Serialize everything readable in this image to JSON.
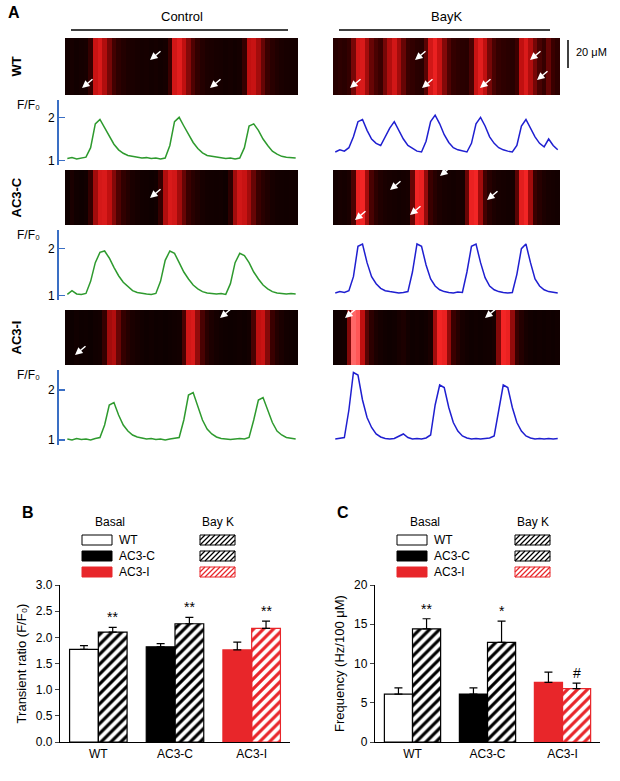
{
  "chart_data": [
    {
      "type": "line",
      "panel": "A",
      "column_titles": [
        "Control",
        "BayK"
      ],
      "y_label": "F/F₀",
      "ylim": [
        0.9,
        2.4
      ],
      "yticks": [
        1,
        2
      ],
      "scale_bar": "20 μM",
      "tick_labels": "y",
      "series": [
        {
          "name": "WT",
          "column": "Control",
          "color": "#2e9a2e",
          "values": [
            1.05,
            1.07,
            1.04,
            1.06,
            1.08,
            1.3,
            1.85,
            1.95,
            1.75,
            1.55,
            1.38,
            1.25,
            1.17,
            1.12,
            1.1,
            1.08,
            1.06,
            1.07,
            1.05,
            1.06,
            1.04,
            1.06,
            1.35,
            1.9,
            2.0,
            1.8,
            1.6,
            1.42,
            1.28,
            1.18,
            1.12,
            1.1,
            1.08,
            1.07,
            1.05,
            1.06,
            1.04,
            1.06,
            1.3,
            1.8,
            1.85,
            1.7,
            1.5,
            1.35,
            1.22,
            1.15,
            1.1,
            1.08,
            1.07,
            1.06
          ]
        },
        {
          "name": "WT",
          "column": "BayK",
          "color": "#1f1fd0",
          "values": [
            1.2,
            1.25,
            1.22,
            1.3,
            1.55,
            1.9,
            1.95,
            1.7,
            1.5,
            1.4,
            1.35,
            1.55,
            1.75,
            1.9,
            1.7,
            1.5,
            1.35,
            1.28,
            1.22,
            1.2,
            1.45,
            1.9,
            2.05,
            1.85,
            1.6,
            1.42,
            1.3,
            1.25,
            1.22,
            1.2,
            1.4,
            1.85,
            2.0,
            1.8,
            1.55,
            1.4,
            1.3,
            1.25,
            1.22,
            1.2,
            1.35,
            1.8,
            1.95,
            1.75,
            1.55,
            1.4,
            1.32,
            1.5,
            1.35,
            1.25
          ]
        },
        {
          "name": "AC3-C",
          "column": "Control",
          "color": "#2e9a2e",
          "values": [
            1.02,
            1.1,
            1.03,
            1.02,
            1.04,
            1.3,
            1.7,
            1.92,
            1.95,
            1.8,
            1.6,
            1.42,
            1.28,
            1.18,
            1.1,
            1.06,
            1.04,
            1.03,
            1.02,
            1.04,
            1.3,
            1.75,
            1.95,
            1.9,
            1.7,
            1.5,
            1.35,
            1.22,
            1.14,
            1.08,
            1.05,
            1.04,
            1.03,
            1.04,
            1.02,
            1.25,
            1.7,
            1.9,
            1.85,
            1.7,
            1.5,
            1.35,
            1.22,
            1.14,
            1.08,
            1.05,
            1.04,
            1.03,
            1.04,
            1.03
          ]
        },
        {
          "name": "AC3-C",
          "column": "BayK",
          "color": "#1f1fd0",
          "values": [
            1.05,
            1.08,
            1.06,
            1.1,
            1.4,
            2.05,
            2.1,
            1.7,
            1.4,
            1.25,
            1.15,
            1.1,
            1.08,
            1.06,
            1.05,
            1.06,
            1.08,
            1.5,
            2.1,
            2.05,
            1.65,
            1.35,
            1.2,
            1.12,
            1.08,
            1.06,
            1.05,
            1.07,
            1.06,
            1.5,
            2.05,
            2.1,
            1.7,
            1.38,
            1.2,
            1.12,
            1.08,
            1.06,
            1.05,
            1.06,
            1.45,
            2.0,
            2.1,
            1.7,
            1.35,
            1.2,
            1.12,
            1.08,
            1.06,
            1.05
          ]
        },
        {
          "name": "AC3-I",
          "column": "Control",
          "color": "#2e9a2e",
          "values": [
            1.02,
            1.0,
            1.03,
            1.01,
            1.02,
            1.0,
            1.03,
            1.05,
            1.3,
            1.7,
            1.75,
            1.5,
            1.3,
            1.18,
            1.1,
            1.06,
            1.04,
            1.02,
            1.03,
            1.01,
            1.02,
            1.0,
            1.02,
            1.03,
            1.05,
            1.4,
            1.9,
            1.95,
            1.65,
            1.4,
            1.22,
            1.12,
            1.06,
            1.03,
            1.02,
            1.01,
            1.02,
            1.03,
            1.02,
            1.05,
            1.4,
            1.8,
            1.85,
            1.6,
            1.35,
            1.18,
            1.1,
            1.05,
            1.03,
            1.02
          ]
        },
        {
          "name": "AC3-I",
          "column": "BayK",
          "color": "#1f1fd0",
          "values": [
            1.02,
            1.03,
            1.05,
            1.6,
            2.35,
            2.3,
            1.8,
            1.45,
            1.25,
            1.12,
            1.06,
            1.03,
            1.02,
            1.03,
            1.08,
            1.12,
            1.05,
            1.02,
            1.03,
            1.02,
            1.04,
            1.1,
            1.7,
            2.1,
            2.05,
            1.65,
            1.35,
            1.18,
            1.08,
            1.04,
            1.02,
            1.03,
            1.02,
            1.03,
            1.04,
            1.08,
            1.6,
            2.1,
            2.05,
            1.65,
            1.35,
            1.18,
            1.08,
            1.04,
            1.02,
            1.03,
            1.02,
            1.03,
            1.02,
            1.03
          ]
        }
      ]
    },
    {
      "type": "bar",
      "panel": "B",
      "y_label": "Transient ratio (F/F₀)",
      "categories": [
        "WT",
        "AC3-C",
        "AC3-I"
      ],
      "ylim": [
        0,
        3
      ],
      "yticks": [
        {
          "value": 0,
          "label": "0.0"
        },
        0.5,
        {
          "value": 1,
          "label": "1.0"
        },
        1.5,
        {
          "value": 2,
          "label": "2.0"
        },
        2.5,
        {
          "value": 3,
          "label": "3.0"
        }
      ],
      "legend": "top-left",
      "grid": false,
      "series": [
        {
          "name": "Basal",
          "marker": "solid",
          "colors": [
            "#ffffff",
            "#000000",
            "#e8262a"
          ],
          "values": [
            1.77,
            1.82,
            1.76
          ],
          "errors": [
            0.07,
            0.06,
            0.15
          ]
        },
        {
          "name": "Bay K",
          "marker": "hatched",
          "colors": [
            "#000000",
            "#000000",
            "#e8262a"
          ],
          "values": [
            2.1,
            2.26,
            2.17
          ],
          "errors": [
            0.09,
            0.12,
            0.14
          ]
        }
      ],
      "annotations": [
        {
          "category": "WT",
          "series": "Bay K",
          "text": "**"
        },
        {
          "category": "AC3-C",
          "series": "Bay K",
          "text": "**"
        },
        {
          "category": "AC3-I",
          "series": "Bay K",
          "text": "**"
        }
      ]
    },
    {
      "type": "bar",
      "panel": "C",
      "y_label": "Frequency (Hz/100 μM)",
      "categories": [
        "WT",
        "AC3-C",
        "AC3-I"
      ],
      "ylim": [
        0,
        20
      ],
      "yticks": [
        0,
        5,
        10,
        15,
        20
      ],
      "legend": "top-left",
      "grid": false,
      "series": [
        {
          "name": "Basal",
          "marker": "solid",
          "colors": [
            "#ffffff",
            "#000000",
            "#e8262a"
          ],
          "values": [
            6.1,
            6.1,
            7.6
          ],
          "errors": [
            0.8,
            0.8,
            1.3
          ]
        },
        {
          "name": "Bay K",
          "marker": "hatched",
          "colors": [
            "#000000",
            "#000000",
            "#e8262a"
          ],
          "values": [
            14.4,
            12.7,
            6.8
          ],
          "errors": [
            1.3,
            2.7,
            0.7
          ]
        }
      ],
      "annotations": [
        {
          "category": "WT",
          "series": "Bay K",
          "text": "**"
        },
        {
          "category": "AC3-C",
          "series": "Bay K",
          "text": "*"
        },
        {
          "category": "AC3-I",
          "series": "Bay K",
          "text": "#"
        }
      ]
    }
  ]
}
